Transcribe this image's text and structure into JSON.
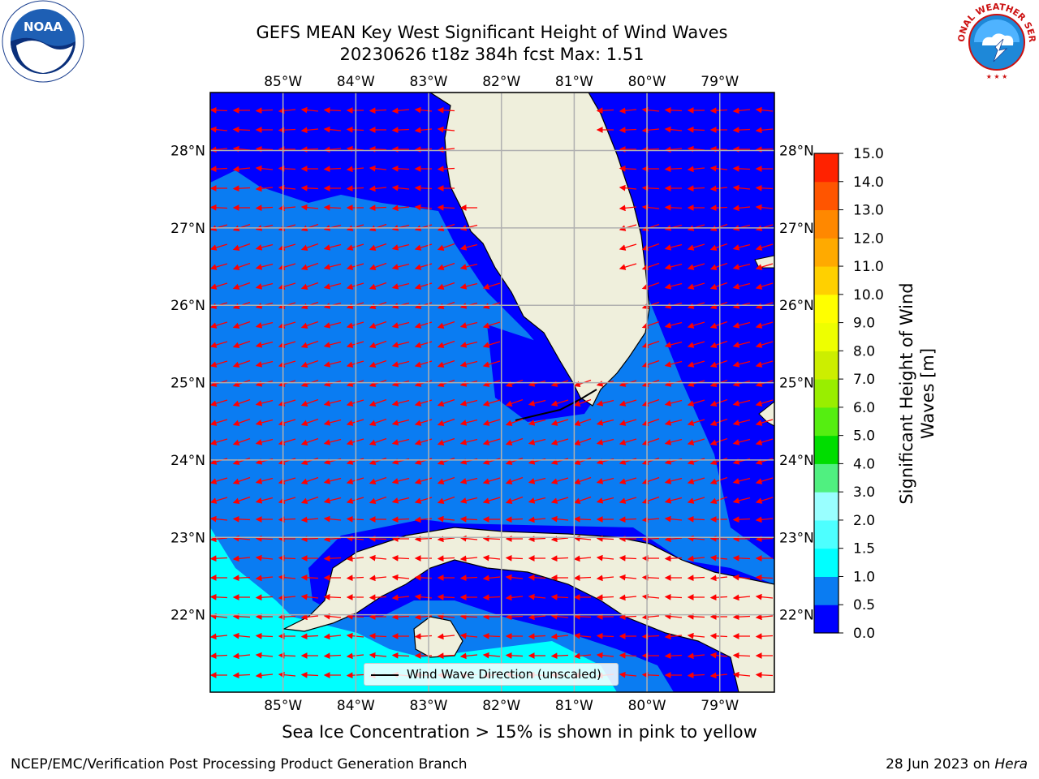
{
  "header": {
    "title_line1": "GEFS MEAN Key West Significant Height of Wind Waves",
    "title_line2": "20230626 t18z 384h fcst   Max: 1.51"
  },
  "logos": {
    "left": "NOAA",
    "right": "NATIONAL WEATHER SERVICE"
  },
  "map": {
    "projection": "PlateCarree",
    "lon_range": [
      -86.0,
      -78.25
    ],
    "lat_range": [
      21.0,
      28.75
    ],
    "lon_ticks": [
      "85°W",
      "84°W",
      "83°W",
      "82°W",
      "81°W",
      "80°W",
      "79°W"
    ],
    "lat_ticks": [
      "22°N",
      "23°N",
      "24°N",
      "25°N",
      "26°N",
      "27°N",
      "28°N"
    ],
    "grid": true,
    "ocean_fill_levels": [
      {
        "range": "0.0-0.5",
        "color": "#0000ff"
      },
      {
        "range": "0.5-1.0",
        "color": "#0a7cf2"
      },
      {
        "range": "1.0-1.5",
        "color": "#00ffff"
      }
    ],
    "land_color": "#efefdc",
    "arrow_color": "#ff0000",
    "arrow_direction": "westward (mostly east-to-west)"
  },
  "legend": {
    "label": "Wind Wave Direction (unscaled)"
  },
  "colorbar": {
    "title": "Significant Height of Wind Waves [m]",
    "ticks": [
      "0.0",
      "0.5",
      "1.0",
      "1.5",
      "2.0",
      "3.0",
      "4.0",
      "5.0",
      "6.0",
      "7.0",
      "8.0",
      "9.0",
      "10.0",
      "11.0",
      "12.0",
      "13.0",
      "14.0",
      "15.0"
    ],
    "colors": [
      "#0000ff",
      "#0a7cf2",
      "#00ffff",
      "#4dffff",
      "#99ffff",
      "#50f080",
      "#00dd00",
      "#55ee11",
      "#99ee00",
      "#ccee00",
      "#eeff00",
      "#ffff00",
      "#ffd000",
      "#ffaa00",
      "#ff8800",
      "#ff5500",
      "#ff2200"
    ]
  },
  "footer": {
    "note": "Sea Ice Concentration > 15% is shown in pink to yellow",
    "credit_left": "NCEP/EMC/Verification Post Processing Product Generation Branch",
    "credit_right_prefix": "28 Jun 2023 on",
    "credit_right_machine": "Hera"
  }
}
